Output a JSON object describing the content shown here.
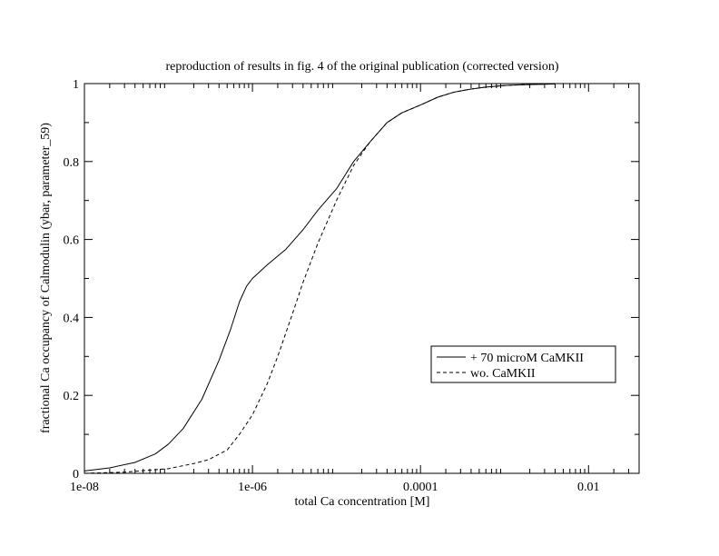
{
  "chart_data": {
    "type": "line",
    "title": "reproduction of results in fig. 4 of the original publication (corrected version)",
    "xlabel": "total Ca concentration [M]",
    "ylabel": "fractional Ca occupancy of Calmodulin (ybar, parameter_59)",
    "x_scale": "log",
    "xlim": [
      1e-08,
      0.04
    ],
    "ylim": [
      0,
      1
    ],
    "x_ticks": [
      {
        "value": 1e-08,
        "label": "1e-08"
      },
      {
        "value": 1e-06,
        "label": "1e-06"
      },
      {
        "value": 0.0001,
        "label": "0.0001"
      },
      {
        "value": 0.01,
        "label": "0.01"
      }
    ],
    "y_ticks": [
      {
        "value": 0,
        "label": "0"
      },
      {
        "value": 0.2,
        "label": "0.2"
      },
      {
        "value": 0.4,
        "label": "0.4"
      },
      {
        "value": 0.6,
        "label": "0.6"
      },
      {
        "value": 0.8,
        "label": "0.8"
      },
      {
        "value": 1,
        "label": "1"
      }
    ],
    "grid": false,
    "legend_position": "right, lower-middle",
    "series": [
      {
        "name": "+ 70 microM CaMKII",
        "style": "solid",
        "color": "#000000",
        "x": [
          1e-08,
          2e-08,
          4e-08,
          7e-08,
          1e-07,
          1.5e-07,
          2.5e-07,
          4e-07,
          5.5e-07,
          7e-07,
          8.5e-07,
          1e-06,
          1.5e-06,
          2.5e-06,
          4e-06,
          6e-06,
          1e-05,
          1.6e-05,
          2.5e-05,
          4e-05,
          6e-05,
          0.0001,
          0.00016,
          0.00025,
          0.0004,
          0.0006,
          0.001,
          0.0016,
          0.0025,
          0.004
        ],
        "y": [
          0.006,
          0.014,
          0.028,
          0.05,
          0.075,
          0.115,
          0.19,
          0.29,
          0.37,
          0.44,
          0.48,
          0.5,
          0.535,
          0.575,
          0.625,
          0.675,
          0.73,
          0.8,
          0.85,
          0.9,
          0.925,
          0.945,
          0.965,
          0.978,
          0.986,
          0.991,
          0.995,
          0.997,
          0.998,
          0.999
        ]
      },
      {
        "name": "wo. CaMKII",
        "style": "dashed",
        "color": "#000000",
        "x": [
          1e-08,
          3e-08,
          1e-07,
          2e-07,
          3e-07,
          5e-07,
          7e-07,
          1e-06,
          1.5e-06,
          2e-06,
          3e-06,
          4e-06,
          6e-06,
          1e-05,
          1.6e-05,
          2.5e-05,
          4e-05,
          6e-05,
          0.0001,
          0.00016,
          0.00025,
          0.0004,
          0.0006,
          0.001,
          0.0016,
          0.0025,
          0.004
        ],
        "y": [
          0.0,
          0.003,
          0.012,
          0.025,
          0.035,
          0.06,
          0.1,
          0.15,
          0.23,
          0.3,
          0.41,
          0.49,
          0.59,
          0.7,
          0.79,
          0.85,
          0.9,
          0.925,
          0.945,
          0.965,
          0.978,
          0.986,
          0.991,
          0.995,
          0.997,
          0.998,
          0.999
        ]
      }
    ]
  }
}
